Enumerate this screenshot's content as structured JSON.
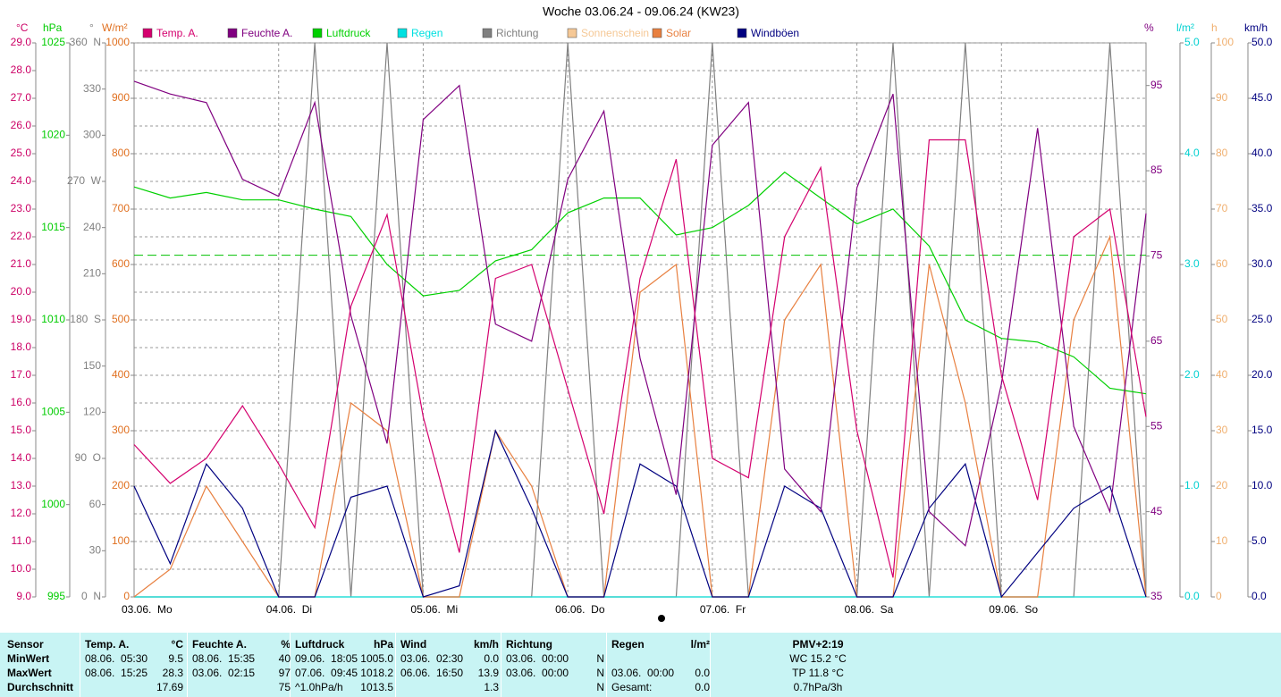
{
  "chart_data": {
    "type": "line",
    "title": "Woche 03.06.24 - 09.06.24 (KW23)",
    "xlim": [
      0,
      168
    ],
    "xticks": [
      {
        "value": 0,
        "label": "03.06.  Mo"
      },
      {
        "value": 24,
        "label": "04.06.  Di"
      },
      {
        "value": 48,
        "label": "05.06.  Mi"
      },
      {
        "value": 72,
        "label": "06.06.  Do"
      },
      {
        "value": 96,
        "label": "07.06.  Fr"
      },
      {
        "value": 120,
        "label": "08.06.  Sa"
      },
      {
        "value": 144,
        "label": "09.06.  So"
      }
    ],
    "grid": true,
    "legend": "top",
    "x": [
      0,
      6,
      12,
      18,
      24,
      30,
      36,
      42,
      48,
      54,
      60,
      66,
      72,
      78,
      84,
      90,
      96,
      102,
      108,
      114,
      120,
      126,
      132,
      138,
      144,
      150,
      156,
      162,
      168
    ],
    "axes": [
      {
        "unit": "°C",
        "color": "#cc0066",
        "lim": [
          9,
          29
        ],
        "ticks": [
          {
            "value": 9,
            "label": "9.0"
          },
          {
            "value": 10,
            "label": "10.0"
          },
          {
            "value": 11,
            "label": "11.0"
          },
          {
            "value": 12,
            "label": "12.0"
          },
          {
            "value": 13,
            "label": "13.0"
          },
          {
            "value": 14,
            "label": "14.0"
          },
          {
            "value": 15,
            "label": "15.0"
          },
          {
            "value": 16,
            "label": "16.0"
          },
          {
            "value": 17,
            "label": "17.0"
          },
          {
            "value": 18,
            "label": "18.0"
          },
          {
            "value": 19,
            "label": "19.0"
          },
          {
            "value": 20,
            "label": "20.0"
          },
          {
            "value": 21,
            "label": "21.0"
          },
          {
            "value": 22,
            "label": "22.0"
          },
          {
            "value": 23,
            "label": "23.0"
          },
          {
            "value": 24,
            "label": "24.0"
          },
          {
            "value": 25,
            "label": "25.0"
          },
          {
            "value": 26,
            "label": "26.0"
          },
          {
            "value": 27,
            "label": "27.0"
          },
          {
            "value": 28,
            "label": "28.0"
          },
          {
            "value": 29,
            "label": "29.0"
          }
        ]
      },
      {
        "unit": "hPa",
        "color": "#00cc00",
        "lim": [
          995,
          1025
        ],
        "ticks": [
          995,
          1000,
          1005,
          1010,
          1015,
          1020,
          1025
        ]
      },
      {
        "unit": "°",
        "color": "#808080",
        "lim": [
          0,
          360
        ],
        "ticks": [
          {
            "value": 0,
            "label": "0  N"
          },
          30,
          60,
          {
            "value": 90,
            "label": "90  O"
          },
          120,
          150,
          {
            "value": 180,
            "label": "180  S"
          },
          210,
          240,
          {
            "value": 270,
            "label": "270  W"
          },
          300,
          330,
          {
            "value": 360,
            "label": "360  N"
          }
        ]
      },
      {
        "unit": "W/m²",
        "color": "#e07020",
        "lim": [
          0,
          1000
        ],
        "ticks": [
          0,
          100,
          200,
          300,
          400,
          500,
          600,
          700,
          800,
          900,
          1000
        ]
      },
      {
        "unit": "%",
        "color": "#800080",
        "lim": [
          35,
          100
        ],
        "ticks": [
          35,
          45,
          55,
          65,
          75,
          85,
          95
        ]
      },
      {
        "unit": "l/m²",
        "color": "#00d0d0",
        "lim": [
          0,
          5
        ],
        "ticks": [
          {
            "value": 0,
            "label": "0.0"
          },
          {
            "value": 1,
            "label": "1.0"
          },
          {
            "value": 2,
            "label": "2.0"
          },
          {
            "value": 3,
            "label": "3.0"
          },
          {
            "value": 4,
            "label": "4.0"
          },
          {
            "value": 5,
            "label": "5.0"
          }
        ]
      },
      {
        "unit": "h",
        "color": "#f0b070",
        "lim": [
          0,
          100
        ],
        "ticks": [
          0,
          10,
          20,
          30,
          40,
          50,
          60,
          70,
          80,
          90,
          100
        ]
      },
      {
        "unit": "km/h",
        "color": "#000080",
        "lim": [
          0,
          50
        ],
        "ticks": [
          {
            "value": 0,
            "label": "0.0"
          },
          {
            "value": 5,
            "label": "5.0"
          },
          {
            "value": 10,
            "label": "10.0"
          },
          {
            "value": 15,
            "label": "15.0"
          },
          {
            "value": 20,
            "label": "20.0"
          },
          {
            "value": 25,
            "label": "25.0"
          },
          {
            "value": 30,
            "label": "30.0"
          },
          {
            "value": 35,
            "label": "35.0"
          },
          {
            "value": 40,
            "label": "40.0"
          },
          {
            "value": 45,
            "label": "45.0"
          },
          {
            "value": 50,
            "label": "50.0"
          }
        ]
      }
    ],
    "series": [
      {
        "name": "Temp. A.",
        "color": "#d4006e",
        "axis": 0,
        "values": [
          14.5,
          13.1,
          14.0,
          15.9,
          13.8,
          11.5,
          19.5,
          22.8,
          15.5,
          10.6,
          20.5,
          21.0,
          16.5,
          12.0,
          20.5,
          24.8,
          14.0,
          13.3,
          22.0,
          24.5,
          15.0,
          9.7,
          25.5,
          25.5,
          17.0,
          12.5,
          22.0,
          23.0,
          15.5
        ]
      },
      {
        "name": "Feuchte A.",
        "color": "#800080",
        "axis": 4,
        "values": [
          95.5,
          94,
          93,
          84,
          82,
          93,
          68,
          53,
          91,
          95,
          67,
          65,
          84,
          92,
          63,
          47,
          88,
          93,
          50,
          45,
          83,
          94,
          45,
          41,
          60,
          90,
          55,
          45,
          80
        ]
      },
      {
        "name": "Luftdruck",
        "color": "#00d000",
        "axis": 1,
        "values": [
          1017.2,
          1016.6,
          1016.9,
          1016.5,
          1016.5,
          1016.0,
          1015.6,
          1013.0,
          1011.3,
          1011.6,
          1013.2,
          1013.8,
          1015.8,
          1016.6,
          1016.6,
          1014.6,
          1015.0,
          1016.2,
          1018.0,
          1016.6,
          1015.2,
          1016.0,
          1014.0,
          1010.0,
          1009.0,
          1008.8,
          1008.0,
          1006.3,
          1006.0
        ]
      },
      {
        "name": "Regen",
        "color": "#00e0e0",
        "axis": 5,
        "values": [
          0,
          0,
          0,
          0,
          0,
          0,
          0,
          0,
          0,
          0,
          0,
          0,
          0,
          0,
          0,
          0,
          0,
          0,
          0,
          0,
          0,
          0,
          0,
          0,
          0,
          0,
          0,
          0,
          0
        ]
      },
      {
        "name": "Richtung",
        "color": "#808080",
        "axis": 2,
        "values": [
          0,
          0,
          0,
          0,
          0,
          360,
          0,
          360,
          0,
          0,
          0,
          0,
          360,
          0,
          0,
          0,
          360,
          0,
          0,
          0,
          0,
          360,
          0,
          360,
          0,
          0,
          0,
          360,
          0
        ]
      },
      {
        "name": "Sonnenschein",
        "color": "#f5c896",
        "axis": 6,
        "values": [
          0,
          0,
          0,
          0,
          0,
          0,
          0,
          0,
          0,
          0,
          0,
          0,
          0,
          0,
          0,
          0,
          0,
          0,
          0,
          0,
          0,
          0,
          0,
          0,
          0,
          0,
          0,
          0,
          0
        ]
      },
      {
        "name": "Solar",
        "color": "#e88040",
        "axis": 3,
        "values": [
          0,
          50,
          200,
          100,
          0,
          0,
          350,
          300,
          0,
          0,
          300,
          200,
          0,
          0,
          550,
          600,
          0,
          0,
          500,
          600,
          0,
          0,
          600,
          350,
          0,
          0,
          500,
          650,
          0
        ]
      },
      {
        "name": "Windböen",
        "color": "#000080",
        "axis": 7,
        "values": [
          10,
          3,
          12,
          8,
          0,
          0,
          9,
          10,
          0,
          1,
          15,
          8,
          0,
          0,
          12,
          10,
          0,
          0,
          10,
          8,
          0,
          0,
          8,
          12,
          0,
          4,
          8,
          10,
          0
        ]
      }
    ],
    "reference_lines": [
      {
        "axis": 1,
        "value": 1013.5,
        "color": "#00c000"
      }
    ]
  },
  "table": {
    "columns": [
      {
        "label": "Sensor"
      },
      {
        "label": "Temp. A.",
        "unit": "°C"
      },
      {
        "label": "Feuchte A.",
        "unit": "%"
      },
      {
        "label": "Luftdruck",
        "unit": "hPa"
      },
      {
        "label": "Wind",
        "unit": "km/h"
      },
      {
        "label": "Richtung"
      },
      {
        "label": "Regen",
        "unit": "l/m²"
      },
      {
        "label": "PMV+2:19"
      }
    ],
    "rows": [
      {
        "label": "MinWert",
        "cells": [
          {
            "time": "08.06.  05:30",
            "value": "9.5"
          },
          {
            "time": "08.06.  15:35",
            "value": "40"
          },
          {
            "time": "09.06.  18:05",
            "value": "1005.0"
          },
          {
            "time": "03.06.  02:30",
            "value": "0.0"
          },
          {
            "time": "03.06.  00:00",
            "value": "N"
          },
          null,
          {
            "value": "WC 15.2 °C"
          }
        ]
      },
      {
        "label": "MaxWert",
        "cells": [
          {
            "time": "08.06.  15:25",
            "value": "28.3"
          },
          {
            "time": "03.06.  02:15",
            "value": "97"
          },
          {
            "time": "07.06.  09:45",
            "value": "1018.2"
          },
          {
            "time": "06.06.  16:50",
            "value": "13.9"
          },
          {
            "time": "03.06.  00:00",
            "value": "N"
          },
          {
            "time": "03.06.  00:00",
            "value": "0.0"
          },
          {
            "value": "TP 11.8 °C"
          }
        ]
      },
      {
        "label": "Durchschnitt",
        "cells": [
          {
            "value": "17.69"
          },
          {
            "value": "75"
          },
          {
            "time": "^1.0hPa/h",
            "value": "1013.5"
          },
          {
            "value": "1.3"
          },
          {
            "value": "N"
          },
          {
            "time": "Gesamt:",
            "value": "0.0"
          },
          {
            "value": "0.7hPa/3h"
          }
        ]
      }
    ]
  }
}
